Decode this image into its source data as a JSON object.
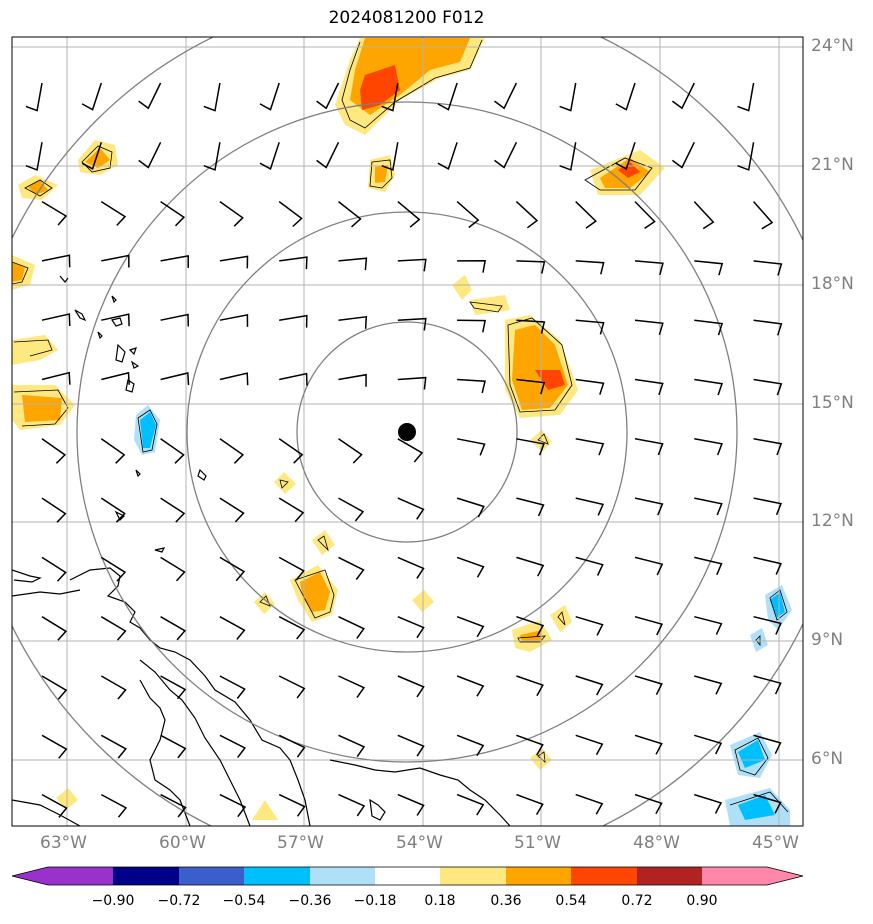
{
  "title": "2024081200 F012",
  "lat_labels": [
    "24°N",
    "21°N",
    "18°N",
    "15°N",
    "12°N",
    "9°N",
    "6°N"
  ],
  "lon_labels": [
    "63°W",
    "60°W",
    "57°W",
    "54°W",
    "51°W",
    "48°W",
    "45°W"
  ],
  "colorbar": {
    "ticks": [
      "−0.90",
      "−0.72",
      "−0.54",
      "−0.36",
      "−0.18",
      "0.18",
      "0.36",
      "0.54",
      "0.72",
      "0.90"
    ],
    "colors": [
      "#9932cc",
      "#00008b",
      "#3a5fcd",
      "#00bfff",
      "#b0e0f8",
      "#ffffff",
      "#ffe880",
      "#ffa500",
      "#ff4500",
      "#b22222",
      "#ff88aa"
    ]
  },
  "center_marker": {
    "lat": 14.3,
    "lon": -53.6
  },
  "range_rings_count": 4
}
